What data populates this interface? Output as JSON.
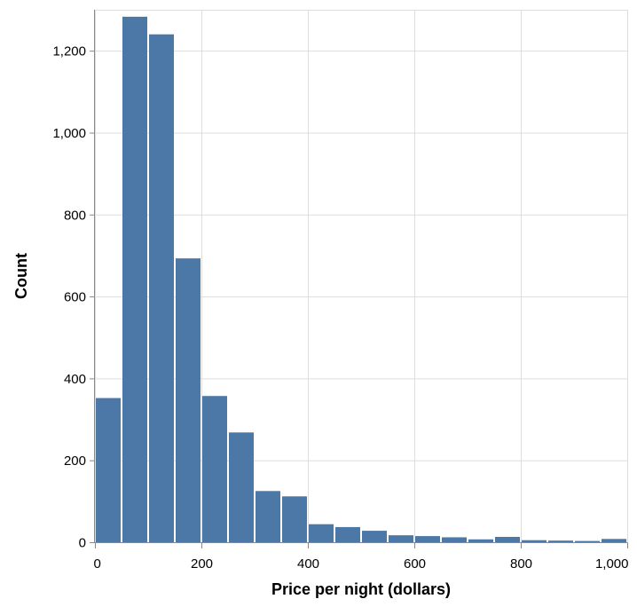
{
  "chart_data": {
    "type": "bar",
    "xlabel": "Price per night (dollars)",
    "ylabel": "Count",
    "bin_width": 50,
    "bins": [
      {
        "x0": 0,
        "x1": 50,
        "count": 352
      },
      {
        "x0": 50,
        "x1": 100,
        "count": 1283
      },
      {
        "x0": 100,
        "x1": 150,
        "count": 1240
      },
      {
        "x0": 150,
        "x1": 200,
        "count": 693
      },
      {
        "x0": 200,
        "x1": 250,
        "count": 357
      },
      {
        "x0": 250,
        "x1": 300,
        "count": 268
      },
      {
        "x0": 300,
        "x1": 350,
        "count": 125
      },
      {
        "x0": 350,
        "x1": 400,
        "count": 112
      },
      {
        "x0": 400,
        "x1": 450,
        "count": 44
      },
      {
        "x0": 450,
        "x1": 500,
        "count": 37
      },
      {
        "x0": 500,
        "x1": 550,
        "count": 28
      },
      {
        "x0": 550,
        "x1": 600,
        "count": 17
      },
      {
        "x0": 600,
        "x1": 650,
        "count": 15
      },
      {
        "x0": 650,
        "x1": 700,
        "count": 12
      },
      {
        "x0": 700,
        "x1": 750,
        "count": 7
      },
      {
        "x0": 750,
        "x1": 800,
        "count": 13
      },
      {
        "x0": 800,
        "x1": 850,
        "count": 5
      },
      {
        "x0": 850,
        "x1": 900,
        "count": 4
      },
      {
        "x0": 900,
        "x1": 950,
        "count": 3
      },
      {
        "x0": 950,
        "x1": 1000,
        "count": 8
      }
    ],
    "xlim": [
      0,
      1000
    ],
    "ylim": [
      0,
      1300
    ],
    "x_ticks": [
      0,
      200,
      400,
      600,
      800,
      1000
    ],
    "x_tick_labels": [
      "0",
      "200",
      "400",
      "600",
      "800",
      "1,000"
    ],
    "y_ticks": [
      0,
      200,
      400,
      600,
      800,
      1000,
      1200
    ],
    "y_tick_labels": [
      "0",
      "200",
      "400",
      "600",
      "800",
      "1,000",
      "1,200"
    ],
    "grid": true,
    "colors": {
      "bar": "#4c78a8",
      "grid": "#dddddd",
      "axis": "#888888"
    }
  }
}
